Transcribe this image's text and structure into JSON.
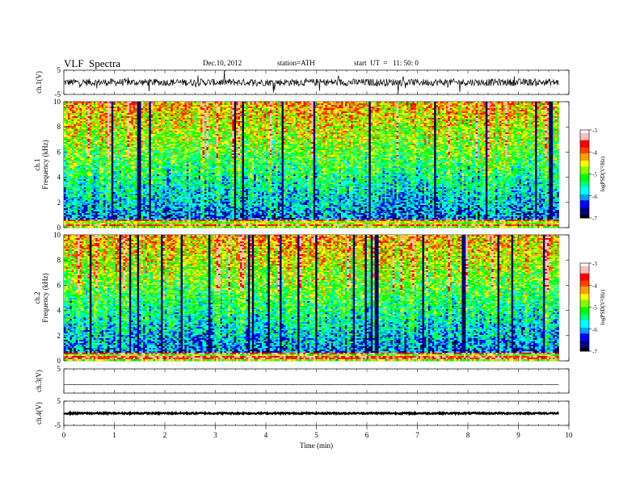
{
  "header": {
    "title": "VLF  Spectra",
    "date": "Dec.10, 2012",
    "station": "station=ATH",
    "start": "start  UT  =   11: 50: 0"
  },
  "chart_data": {
    "type": "heatmap",
    "xlabel": "Time  (min)",
    "xlim": [
      0,
      10
    ],
    "xticks": [
      "0",
      "1",
      "2",
      "3",
      "4",
      "5",
      "6",
      "7",
      "8",
      "9",
      "10"
    ],
    "data_end_min": 9.8,
    "panels": [
      {
        "name": "ch1_waveform",
        "type": "line",
        "ylabel": "ch.1(V)",
        "ylim": [
          -5,
          5
        ],
        "yticks": [
          "5",
          "-5"
        ],
        "baseline": 0,
        "noise_amplitude": 1.5
      },
      {
        "name": "ch1_spectrogram",
        "type": "heatmap",
        "ylabel_lines": [
          "ch.1",
          "Frequency  (kHz)"
        ],
        "ylim": [
          0,
          10
        ],
        "yticks": [
          "0",
          "2",
          "4",
          "6",
          "8",
          "10"
        ],
        "colorbar": {
          "label": "logPSD(V²/Hz)",
          "range": [
            -7,
            -3
          ],
          "ticks": [
            "-7",
            "-6",
            "-5",
            "-4",
            "-3"
          ]
        }
      },
      {
        "name": "ch2_spectrogram",
        "type": "heatmap",
        "ylabel_lines": [
          "ch.2",
          "Frequency  (kHz)"
        ],
        "ylim": [
          0,
          10
        ],
        "yticks": [
          "0",
          "2",
          "4",
          "6",
          "8",
          "10"
        ],
        "colorbar": {
          "label": "logPSD(V²/Hz)",
          "range": [
            -7,
            -3
          ],
          "ticks": [
            "-7",
            "-6",
            "-5",
            "-4",
            "-3"
          ]
        }
      },
      {
        "name": "ch3_waveform",
        "type": "line",
        "ylabel": "ch.3(V)",
        "ylim": [
          -5,
          5
        ],
        "yticks": [
          "5"
        ],
        "baseline": -1.5,
        "noise_amplitude": 0.05
      },
      {
        "name": "ch4_waveform",
        "type": "line",
        "ylabel": "ch.4(V)",
        "ylim": [
          -5,
          5
        ],
        "yticks": [
          "5",
          "-5"
        ],
        "baseline": 0,
        "noise_amplitude": 0.3
      }
    ],
    "colormap": [
      "#000000",
      "#000080",
      "#0000ff",
      "#00a0ff",
      "#00ffff",
      "#00ff80",
      "#00ff00",
      "#80ff00",
      "#ffff00",
      "#ffa000",
      "#ff4000",
      "#ff0000",
      "#ffc0c0",
      "#ffffff"
    ]
  }
}
